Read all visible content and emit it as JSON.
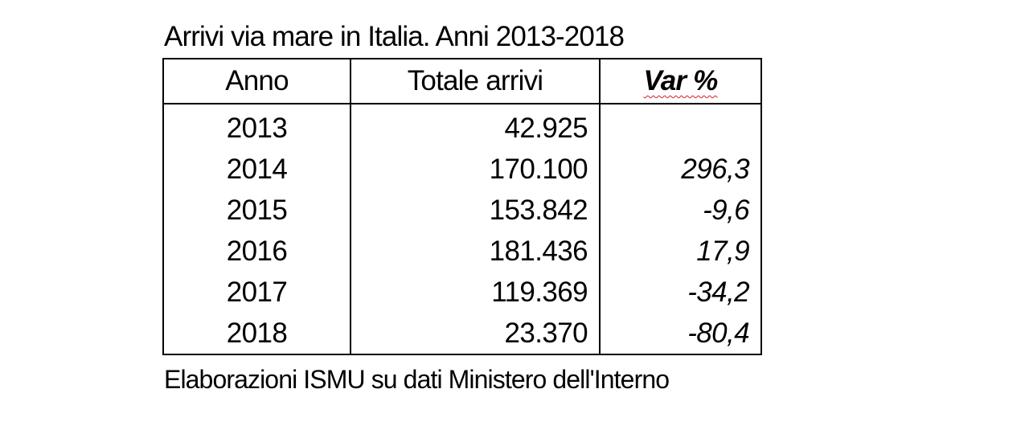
{
  "title": "Arrivi via mare in Italia. Anni 2013-2018",
  "table": {
    "headers": {
      "year": "Anno",
      "total": "Totale arrivi",
      "var": "Var %"
    },
    "rows": [
      {
        "year": "2013",
        "total": "42.925",
        "var": ""
      },
      {
        "year": "2014",
        "total": "170.100",
        "var": "296,3"
      },
      {
        "year": "2015",
        "total": "153.842",
        "var": "-9,6"
      },
      {
        "year": "2016",
        "total": "181.436",
        "var": "17,9"
      },
      {
        "year": "2017",
        "total": "119.369",
        "var": "-34,2"
      },
      {
        "year": "2018",
        "total": "23.370",
        "var": "-80,4"
      }
    ]
  },
  "source": "Elaborazioni ISMU su dati Ministero dell'Interno",
  "colors": {
    "text": "#000000",
    "border": "#000000",
    "spellcheck_underline": "#cc2222"
  }
}
